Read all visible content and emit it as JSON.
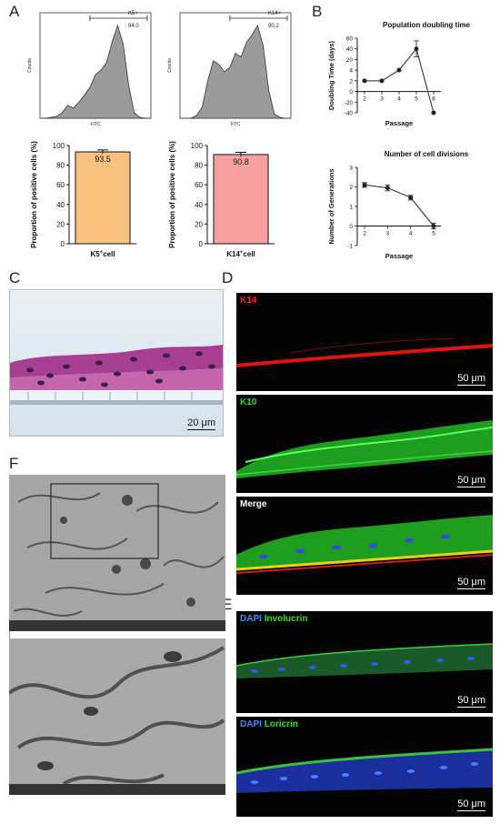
{
  "panels": {
    "A": "A",
    "B": "B",
    "C": "C",
    "D": "D",
    "E": "E",
    "F": "F"
  },
  "chart_data": [
    {
      "id": "flow-k5",
      "type": "area",
      "gate_label": "K5+",
      "gate_value": "94.0",
      "xlabel": "FITC",
      "ylabel": "Counts",
      "x": [
        0,
        0.05,
        0.1,
        0.15,
        0.2,
        0.25,
        0.3,
        0.35,
        0.4,
        0.45,
        0.5,
        0.55,
        0.6,
        0.65,
        0.7,
        0.75,
        0.8,
        0.85,
        0.9,
        0.95,
        1.0
      ],
      "values": [
        0,
        0,
        0.01,
        0.02,
        0.06,
        0.14,
        0.11,
        0.17,
        0.25,
        0.33,
        0.47,
        0.52,
        0.6,
        0.82,
        1.0,
        0.8,
        0.35,
        0.06,
        0.01,
        0,
        0
      ]
    },
    {
      "id": "flow-k14",
      "type": "area",
      "gate_label": "K14+",
      "gate_value": "90.2",
      "xlabel": "FITC",
      "ylabel": "Counts",
      "x": [
        0,
        0.05,
        0.1,
        0.15,
        0.2,
        0.25,
        0.3,
        0.35,
        0.4,
        0.45,
        0.5,
        0.55,
        0.6,
        0.65,
        0.7,
        0.75,
        0.8,
        0.85,
        0.9,
        0.95,
        1.0
      ],
      "values": [
        0,
        0,
        0,
        0.03,
        0.12,
        0.4,
        0.62,
        0.58,
        0.5,
        0.55,
        0.7,
        0.66,
        0.82,
        0.9,
        1.0,
        0.78,
        0.3,
        0.05,
        0.01,
        0,
        0
      ]
    },
    {
      "id": "bar-k5",
      "type": "bar",
      "categories": [
        "K5 cell"
      ],
      "category_superscript": "+",
      "values": [
        93.5
      ],
      "error": [
        2.0
      ],
      "value_label": "93.5",
      "ylabel": "Proportion of positive cells (%)",
      "yticks": [
        0,
        20,
        40,
        60,
        80,
        100
      ],
      "ylim": [
        0,
        100
      ],
      "color": "#f9c27f"
    },
    {
      "id": "bar-k14",
      "type": "bar",
      "categories": [
        "K14 cell"
      ],
      "category_superscript": "+",
      "values": [
        90.8
      ],
      "error": [
        2.2
      ],
      "value_label": "90.8",
      "ylabel": "Proportion of positive cells (%)",
      "yticks": [
        0,
        20,
        40,
        60,
        80,
        100
      ],
      "ylim": [
        0,
        100
      ],
      "color": "#f7a1a3"
    },
    {
      "id": "line-doubling",
      "type": "line",
      "title": "Population doubling time",
      "xlabel": "Passage",
      "ylabel": "Doubling Time (days)",
      "x": [
        2,
        3,
        4,
        5,
        6
      ],
      "y": [
        2,
        2,
        4,
        40,
        -40
      ],
      "error": [
        0,
        0,
        0,
        15,
        0
      ],
      "xticks": [
        "2",
        "3",
        "4",
        "5",
        "6"
      ],
      "yticks": [
        -40,
        -20,
        0,
        2,
        4,
        20,
        40,
        60
      ],
      "ylim": [
        -40,
        60
      ]
    },
    {
      "id": "line-divisions",
      "type": "line",
      "title": "Number of cell divisions",
      "xlabel": "Passage",
      "ylabel": "Number of Generations",
      "x": [
        2,
        3,
        4,
        5
      ],
      "y": [
        2.1,
        1.95,
        1.45,
        0.0
      ],
      "error": [
        0.12,
        0.15,
        0.12,
        0.15
      ],
      "xticks": [
        "2",
        "3",
        "4",
        "5"
      ],
      "yticks": [
        -1,
        0,
        1,
        2,
        3
      ],
      "ylim": [
        -1,
        3
      ]
    }
  ],
  "micrographs": {
    "he": {
      "scale": "20 μm"
    },
    "d1": {
      "label": "K14",
      "color": "#ff2020",
      "scale": "50 μm"
    },
    "d2": {
      "label": "K10",
      "color": "#2fdc2f",
      "scale": "50 μm"
    },
    "d3": {
      "label": "Merge",
      "color": "#ffffff",
      "scale": "50 μm"
    },
    "e1": {
      "label_a": "DAPI",
      "label_b": "Involucrin",
      "color_a": "#3a8dff",
      "color_b": "#2fdc2f",
      "scale": "50 μm"
    },
    "e2": {
      "label_a": "DAPI",
      "label_b": "Loricrin",
      "color_a": "#3a8dff",
      "color_b": "#2fdc2f",
      "scale": "50 μm"
    }
  }
}
